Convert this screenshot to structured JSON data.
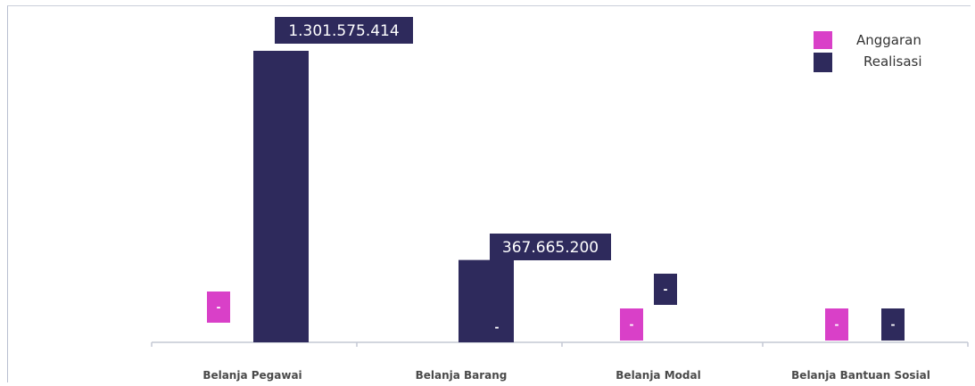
{
  "chart_data": {
    "type": "bar",
    "categories": [
      "Belanja Pegawai",
      "Belanja Barang",
      "Belanja Modal",
      "Belanja Bantuan Sosial"
    ],
    "series": [
      {
        "name": "Anggaran",
        "color": "#d940c8",
        "values": [
          null,
          null,
          null,
          null
        ]
      },
      {
        "name": "Realisasi",
        "color": "#2e2a5c",
        "values": [
          1301575414,
          367665200,
          null,
          null
        ]
      }
    ],
    "data_labels": {
      "Anggaran": [
        "-",
        "-",
        "-",
        "-"
      ],
      "Realisasi": [
        "1.301.575.414",
        "367.665.200",
        "-",
        "-"
      ]
    },
    "legend": {
      "position": "top-right",
      "entries": [
        "Anggaran",
        "Realisasi"
      ]
    },
    "ylim": [
      0,
      1301575414
    ],
    "grid": false
  }
}
